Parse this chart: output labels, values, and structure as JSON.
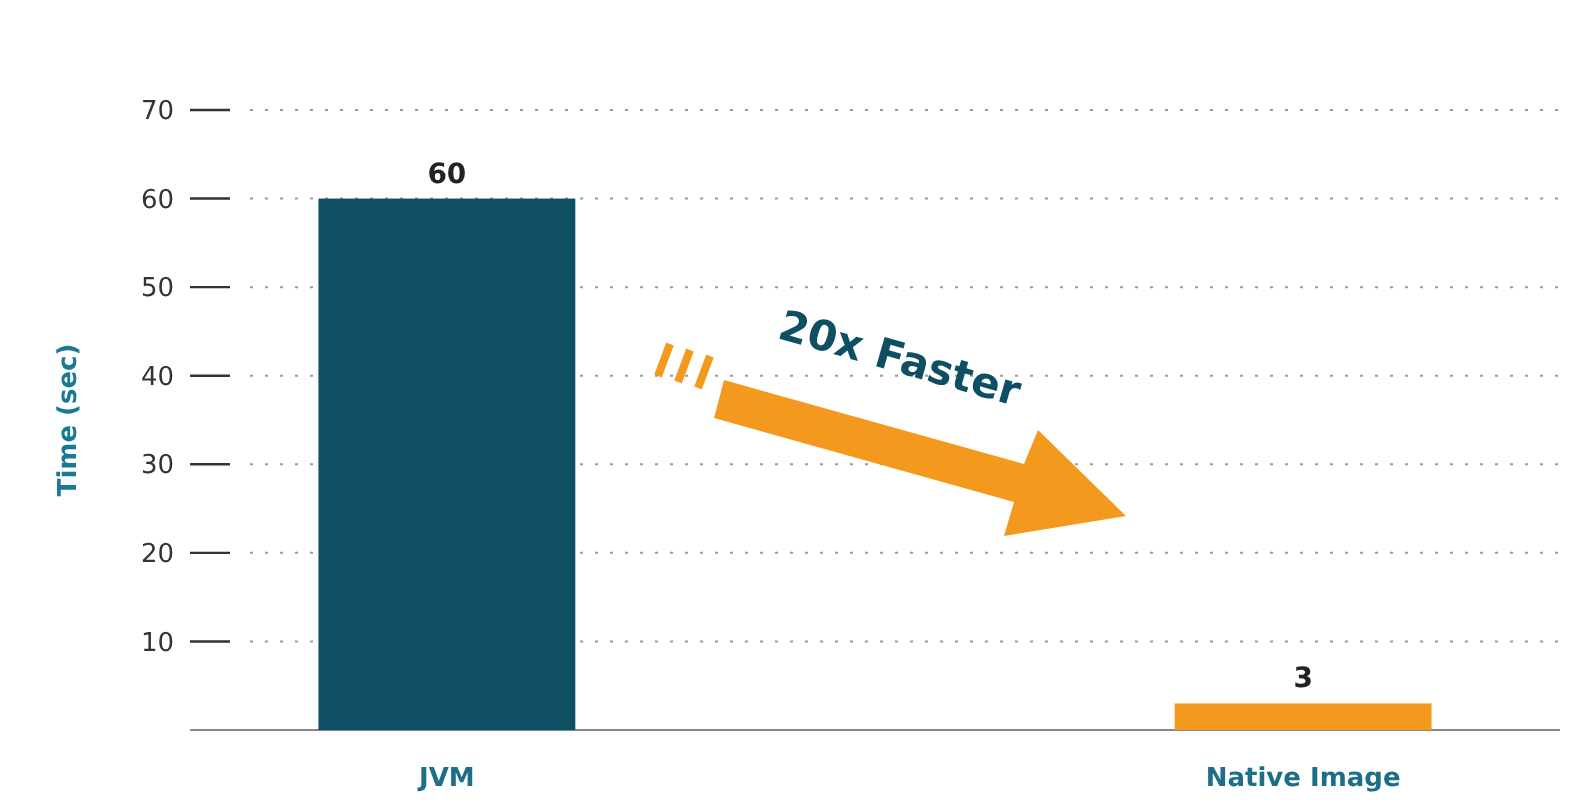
{
  "chart_data": {
    "type": "bar",
    "ylabel": "Time (sec)",
    "categories": [
      "JVM",
      "Native Image"
    ],
    "values": [
      60,
      3
    ],
    "colors": [
      "#0f4f63",
      "#f39a1e"
    ],
    "ylim": [
      0,
      70
    ],
    "yticks": [
      10,
      20,
      30,
      40,
      50,
      60,
      70
    ],
    "grid": "y",
    "data_labels": true,
    "annotations": [
      "20x Faster"
    ]
  }
}
